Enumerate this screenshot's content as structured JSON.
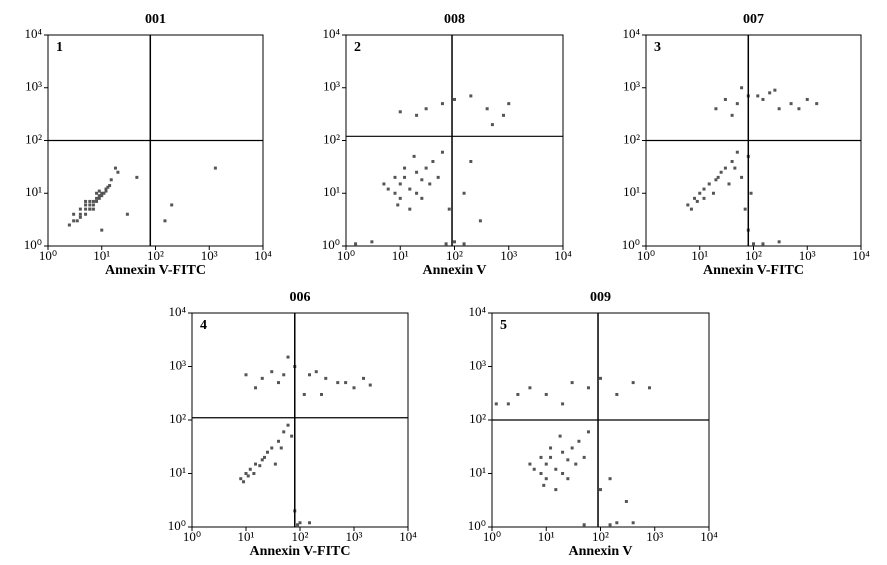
{
  "chart_data": [
    {
      "type": "scatter",
      "title": "001",
      "panel_label": "1",
      "x_label": "Annexin V-FITC",
      "log_scale": true,
      "xlim": [
        1,
        10000
      ],
      "ylim": [
        1,
        10000
      ],
      "xticks": [
        {
          "value": 1,
          "label": "10⁰"
        },
        {
          "value": 10,
          "label": "10¹"
        },
        {
          "value": 100,
          "label": "10²"
        },
        {
          "value": 1000,
          "label": "10³"
        },
        {
          "value": 10000,
          "label": "10⁴"
        }
      ],
      "yticks": [
        {
          "value": 1,
          "label": "10⁰"
        },
        {
          "value": 10,
          "label": "10¹"
        },
        {
          "value": 100,
          "label": "10²"
        },
        {
          "value": 1000,
          "label": "10³"
        },
        {
          "value": 10000,
          "label": "10⁴"
        }
      ],
      "xgate": 80,
      "ygate": 100,
      "color": "#555555",
      "x": [
        3,
        4,
        5,
        6,
        7,
        8,
        9,
        10,
        12,
        14,
        4,
        5,
        6,
        8,
        10,
        3,
        5,
        7,
        9,
        11,
        13,
        6,
        8,
        4,
        15,
        20,
        2.5,
        7,
        9,
        12,
        5,
        6,
        30,
        150,
        1300,
        45,
        200,
        10,
        3.5,
        18
      ],
      "values": [
        3,
        4,
        5,
        5,
        7,
        8,
        8,
        10,
        12,
        14,
        5,
        4,
        6,
        7,
        9,
        4,
        6,
        6,
        9,
        10,
        13,
        7,
        10,
        3.5,
        18,
        25,
        2.5,
        5,
        11,
        11,
        7,
        5,
        4,
        3,
        30,
        20,
        6,
        2,
        3,
        30
      ]
    },
    {
      "type": "scatter",
      "title": "008",
      "panel_label": "2",
      "x_label": "Annexin V",
      "log_scale": true,
      "xlim": [
        1,
        10000
      ],
      "ylim": [
        1,
        10000
      ],
      "xticks": [
        {
          "value": 1,
          "label": "10⁰"
        },
        {
          "value": 10,
          "label": "10¹"
        },
        {
          "value": 100,
          "label": "10²"
        },
        {
          "value": 1000,
          "label": "10³"
        },
        {
          "value": 10000,
          "label": "10⁴"
        }
      ],
      "yticks": [
        {
          "value": 1,
          "label": "10⁰"
        },
        {
          "value": 10,
          "label": "10¹"
        },
        {
          "value": 100,
          "label": "10²"
        },
        {
          "value": 1000,
          "label": "10³"
        },
        {
          "value": 10000,
          "label": "10⁴"
        }
      ],
      "xgate": 90,
      "ygate": 120,
      "color": "#555555",
      "x": [
        8,
        10,
        12,
        15,
        20,
        25,
        30,
        10,
        15,
        40,
        50,
        60,
        8,
        6,
        20,
        80,
        150,
        300,
        100,
        12,
        18,
        25,
        35,
        5,
        9,
        200,
        500,
        800,
        30,
        60,
        100,
        200,
        400,
        1000,
        20,
        10,
        70,
        150,
        3,
        1.5
      ],
      "values": [
        10,
        15,
        20,
        12,
        25,
        18,
        30,
        8,
        5,
        40,
        20,
        60,
        20,
        12,
        10,
        5,
        10,
        3,
        1.2,
        30,
        50,
        8,
        15,
        15,
        6,
        40,
        200,
        300,
        400,
        500,
        600,
        700,
        400,
        500,
        300,
        350,
        1.1,
        1.1,
        1.2,
        1.1
      ]
    },
    {
      "type": "scatter",
      "title": "007",
      "panel_label": "3",
      "x_label": "Annexin V-FITC",
      "log_scale": true,
      "xlim": [
        1,
        10000
      ],
      "ylim": [
        1,
        10000
      ],
      "xticks": [
        {
          "value": 1,
          "label": "10⁰"
        },
        {
          "value": 10,
          "label": "10¹"
        },
        {
          "value": 100,
          "label": "10²"
        },
        {
          "value": 1000,
          "label": "10³"
        },
        {
          "value": 10000,
          "label": "10⁴"
        }
      ],
      "yticks": [
        {
          "value": 1,
          "label": "10⁰"
        },
        {
          "value": 10,
          "label": "10¹"
        },
        {
          "value": 100,
          "label": "10²"
        },
        {
          "value": 1000,
          "label": "10³"
        },
        {
          "value": 10000,
          "label": "10⁴"
        }
      ],
      "xgate": 80,
      "ygate": 100,
      "color": "#555555",
      "x": [
        6,
        8,
        10,
        12,
        15,
        20,
        25,
        30,
        40,
        50,
        7,
        9,
        12,
        18,
        22,
        35,
        45,
        60,
        70,
        80,
        100,
        150,
        300,
        80,
        90,
        20,
        30,
        50,
        80,
        150,
        300,
        500,
        1000,
        1500,
        60,
        200,
        700,
        40,
        120,
        250
      ],
      "values": [
        6,
        8,
        10,
        8,
        15,
        18,
        25,
        30,
        40,
        60,
        5,
        7,
        12,
        10,
        20,
        15,
        30,
        20,
        5,
        2,
        1.1,
        1.1,
        1.2,
        50,
        10,
        400,
        600,
        500,
        700,
        600,
        400,
        500,
        600,
        500,
        1000,
        800,
        400,
        300,
        700,
        900
      ]
    },
    {
      "type": "scatter",
      "title": "006",
      "panel_label": "4",
      "x_label": "Annexin V-FITC",
      "log_scale": true,
      "xlim": [
        1,
        10000
      ],
      "ylim": [
        1,
        10000
      ],
      "xticks": [
        {
          "value": 1,
          "label": "10⁰"
        },
        {
          "value": 10,
          "label": "10¹"
        },
        {
          "value": 100,
          "label": "10²"
        },
        {
          "value": 1000,
          "label": "10³"
        },
        {
          "value": 10000,
          "label": "10⁴"
        }
      ],
      "yticks": [
        {
          "value": 1,
          "label": "10⁰"
        },
        {
          "value": 10,
          "label": "10¹"
        },
        {
          "value": 100,
          "label": "10²"
        },
        {
          "value": 1000,
          "label": "10³"
        },
        {
          "value": 10000,
          "label": "10⁴"
        }
      ],
      "xgate": 80,
      "ygate": 110,
      "color": "#555555",
      "x": [
        8,
        10,
        12,
        15,
        20,
        25,
        30,
        40,
        50,
        60,
        9,
        11,
        14,
        18,
        22,
        35,
        45,
        70,
        80,
        100,
        90,
        150,
        20,
        30,
        50,
        80,
        150,
        300,
        500,
        1000,
        2000,
        60,
        200,
        700,
        40,
        10,
        15,
        120,
        250,
        1500
      ],
      "values": [
        8,
        10,
        12,
        15,
        18,
        25,
        30,
        40,
        60,
        80,
        7,
        9,
        10,
        14,
        20,
        15,
        30,
        50,
        2,
        1.2,
        1.1,
        1.2,
        600,
        800,
        700,
        1000,
        700,
        600,
        500,
        400,
        450,
        1500,
        800,
        500,
        500,
        700,
        400,
        300,
        300,
        600
      ]
    },
    {
      "type": "scatter",
      "title": "009",
      "panel_label": "5",
      "x_label": "Annexin V",
      "log_scale": true,
      "xlim": [
        1,
        10000
      ],
      "ylim": [
        1,
        10000
      ],
      "xticks": [
        {
          "value": 1,
          "label": "10⁰"
        },
        {
          "value": 10,
          "label": "10¹"
        },
        {
          "value": 100,
          "label": "10²"
        },
        {
          "value": 1000,
          "label": "10³"
        },
        {
          "value": 10000,
          "label": "10⁴"
        }
      ],
      "yticks": [
        {
          "value": 1,
          "label": "10⁰"
        },
        {
          "value": 10,
          "label": "10¹"
        },
        {
          "value": 100,
          "label": "10²"
        },
        {
          "value": 1000,
          "label": "10³"
        },
        {
          "value": 10000,
          "label": "10⁴"
        }
      ],
      "xgate": 90,
      "ygate": 100,
      "color": "#555555",
      "x": [
        8,
        10,
        12,
        15,
        20,
        25,
        30,
        10,
        15,
        40,
        50,
        60,
        8,
        6,
        20,
        100,
        150,
        300,
        200,
        12,
        18,
        25,
        35,
        5,
        9,
        3,
        5,
        10,
        30,
        60,
        100,
        200,
        400,
        800,
        2,
        20,
        50,
        150,
        400,
        1.2
      ],
      "values": [
        10,
        15,
        20,
        12,
        25,
        18,
        30,
        8,
        5,
        40,
        20,
        60,
        20,
        12,
        10,
        5,
        8,
        3,
        1.2,
        30,
        50,
        8,
        15,
        15,
        6,
        300,
        400,
        300,
        500,
        400,
        600,
        300,
        500,
        400,
        200,
        200,
        1.1,
        1.1,
        1.2,
        200
      ]
    }
  ]
}
